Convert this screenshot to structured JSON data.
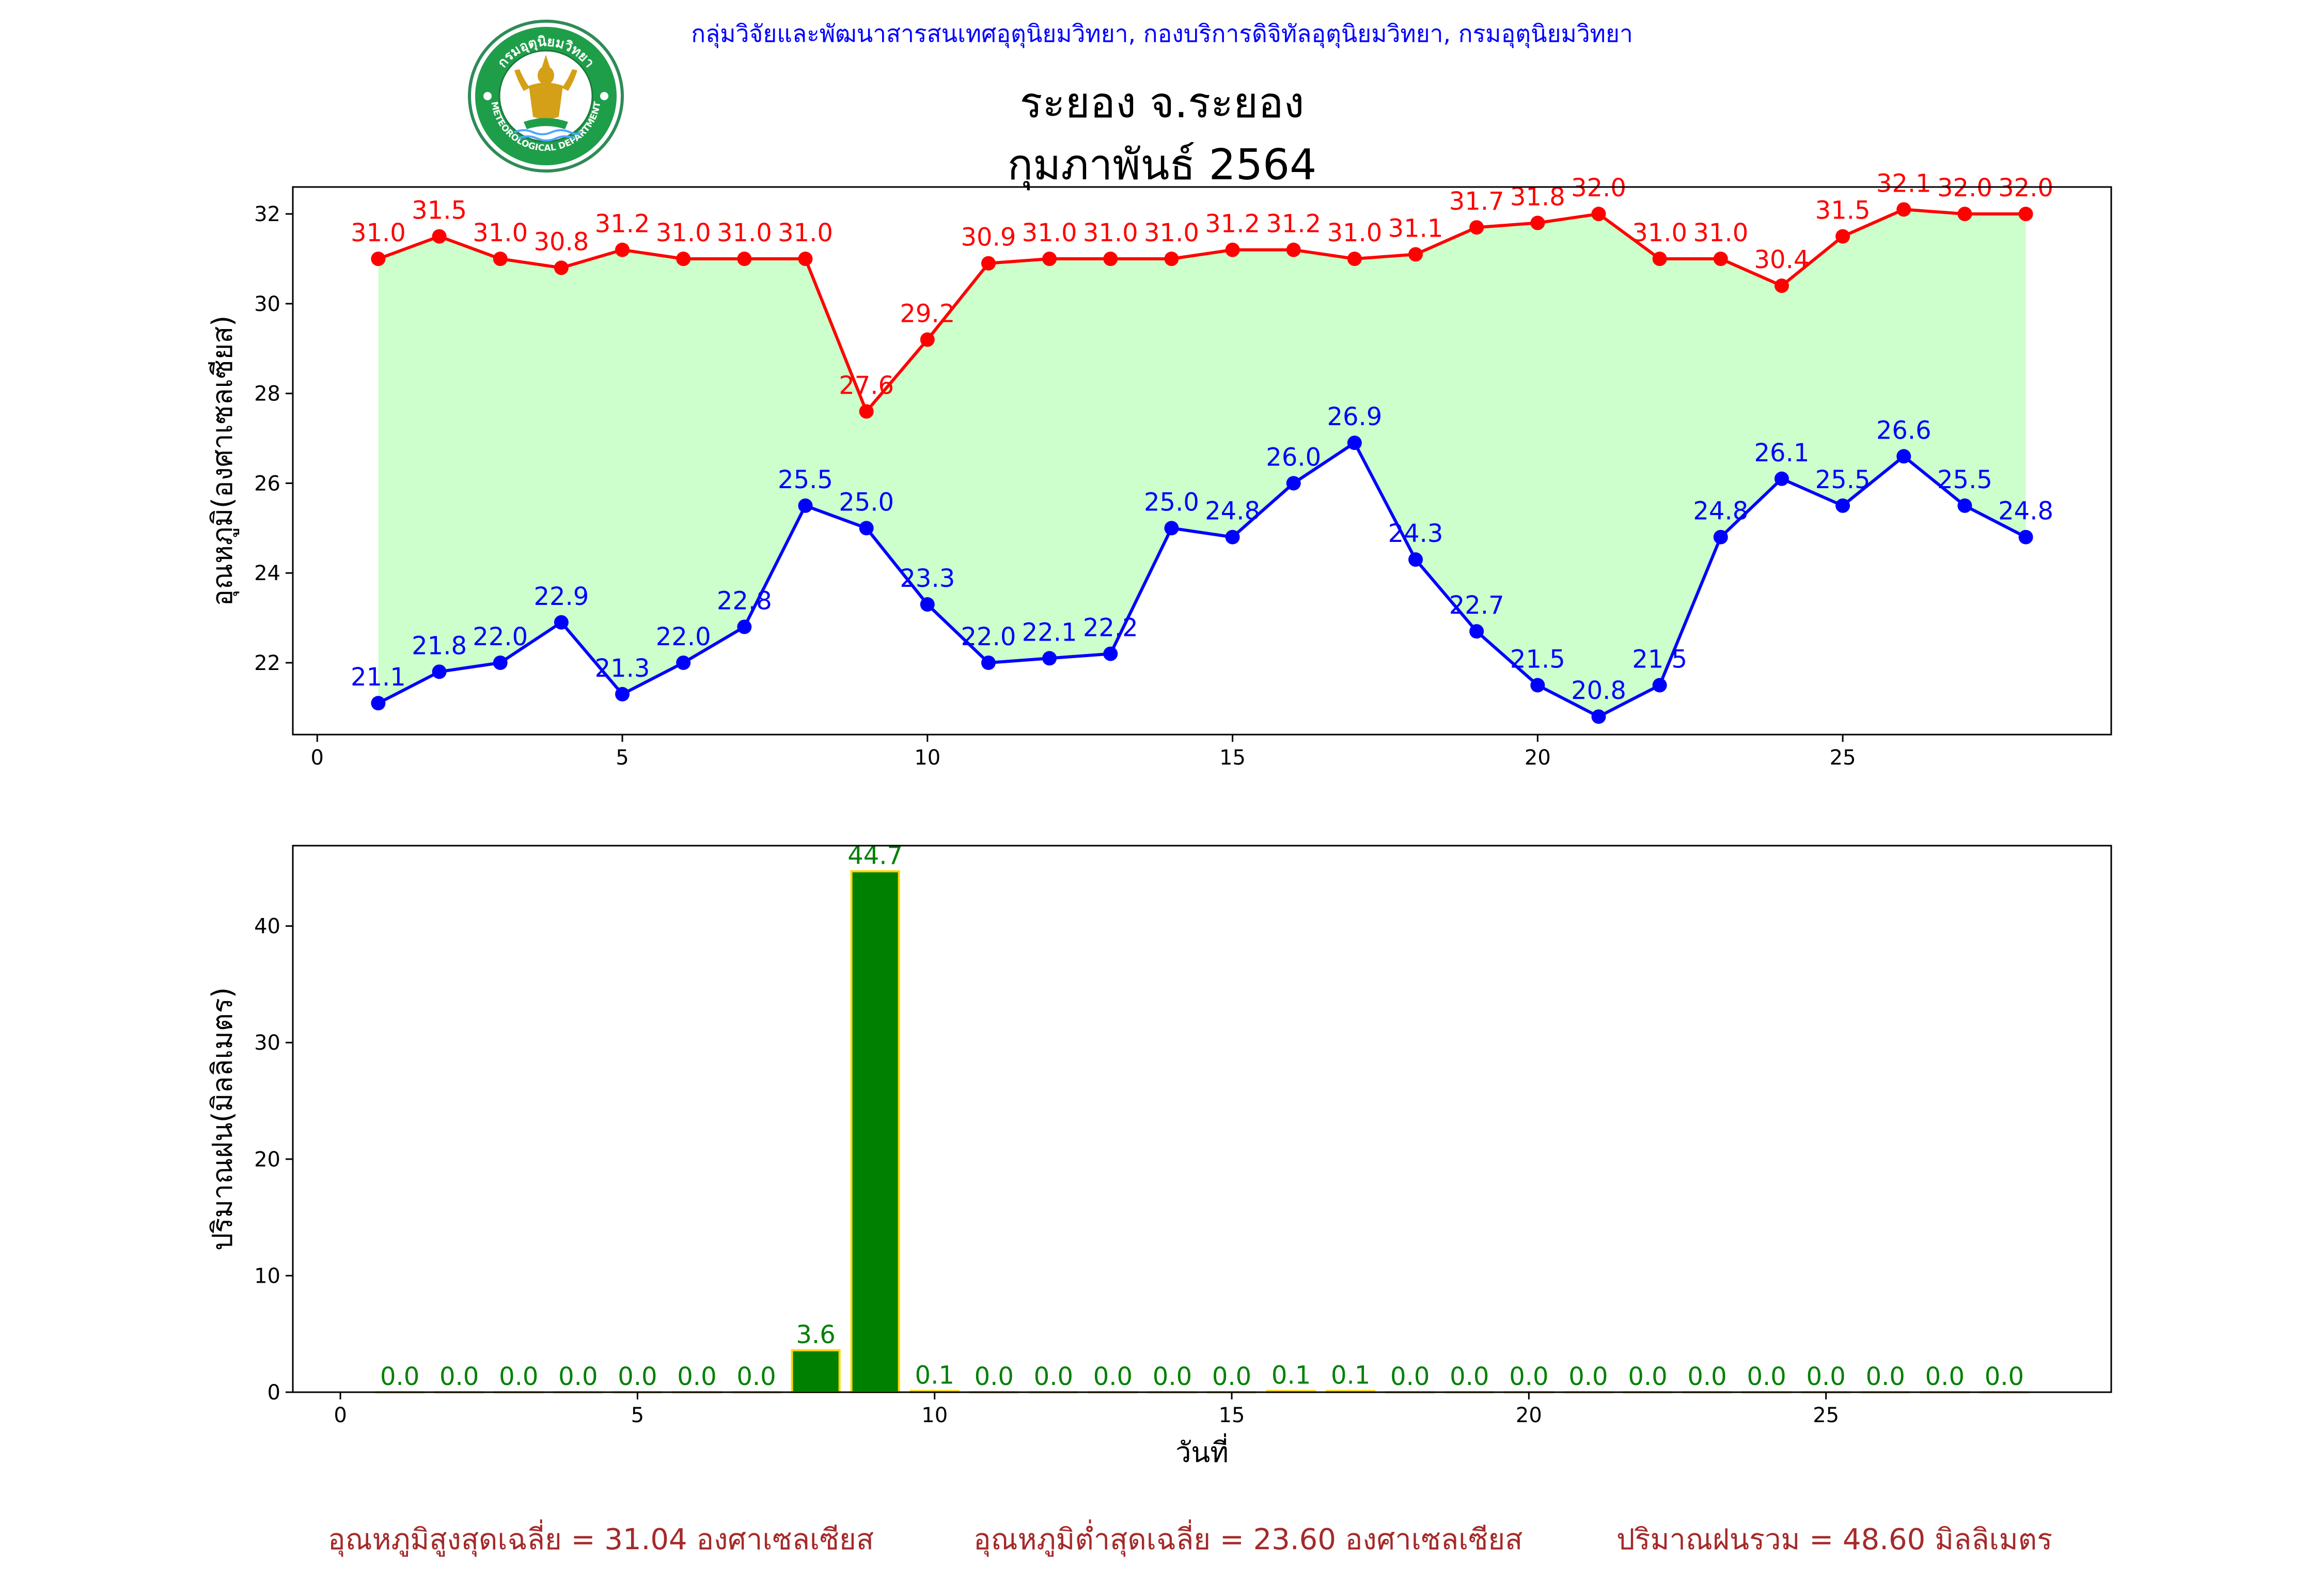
{
  "header": {
    "org_line": "กลุ่มวิจัยและพัฒนาสารสนเทศอุตุนิยมวิทยา, กองบริการดิจิทัลอุตุนิยมวิทยา, กรมอุตุนิยมวิทยา",
    "station": "ระยอง จ.ระยอง",
    "month": "กุมภาพันธ์ 2564",
    "logo_text": "กรมอุตุนิยมวิทยา METEOROLOGICAL DEPARTMENT",
    "logo_icon": "meteorological-department-seal"
  },
  "colors": {
    "max_temp": "#ff0000",
    "min_temp": "#0000ff",
    "temp_fill": "#ccffcc",
    "rain_bar": "#008000",
    "rain_bar_edge": "#ffd700",
    "rain_label": "#008000",
    "summary_text": "#a52a2a",
    "org_text": "#0000ff"
  },
  "chart_data": [
    {
      "type": "line",
      "title": "",
      "ylabel": "อุณหภูมิ(องศาเซลเซียส)",
      "xlabel": "",
      "x": [
        1,
        2,
        3,
        4,
        5,
        6,
        7,
        8,
        9,
        10,
        11,
        12,
        13,
        14,
        15,
        16,
        17,
        18,
        19,
        20,
        21,
        22,
        23,
        24,
        25,
        26,
        27,
        28
      ],
      "xlim": [
        -0.4,
        29.4
      ],
      "ylim": [
        20.4,
        32.6
      ],
      "xticks": [
        0,
        5,
        10,
        15,
        20,
        25
      ],
      "yticks": [
        22,
        24,
        26,
        28,
        30,
        32
      ],
      "grid": false,
      "fill_between": true,
      "series": [
        {
          "values": [
            31.0,
            31.5,
            31.0,
            30.8,
            31.2,
            31.0,
            31.0,
            31.0,
            27.6,
            29.2,
            30.9,
            31.0,
            31.0,
            31.0,
            31.2,
            31.2,
            31.0,
            31.1,
            31.7,
            31.8,
            32.0,
            31.0,
            31.0,
            30.4,
            31.5,
            32.1,
            32.0,
            32.0
          ]
        },
        {
          "values": [
            21.1,
            21.8,
            22.0,
            22.9,
            21.3,
            22.0,
            22.8,
            25.5,
            25.0,
            23.3,
            22.0,
            22.1,
            22.2,
            25.0,
            24.8,
            26.0,
            26.9,
            24.3,
            22.7,
            21.5,
            20.8,
            21.5,
            24.8,
            26.1,
            25.5,
            26.6,
            25.5,
            24.8
          ]
        }
      ]
    },
    {
      "type": "bar",
      "title": "",
      "ylabel": "ปริมาณฝน(มิลลิเมตร)",
      "xlabel": "วันที่",
      "x": [
        1,
        2,
        3,
        4,
        5,
        6,
        7,
        8,
        9,
        10,
        11,
        12,
        13,
        14,
        15,
        16,
        17,
        18,
        19,
        20,
        21,
        22,
        23,
        24,
        25,
        26,
        27,
        28
      ],
      "values": [
        0.0,
        0.0,
        0.0,
        0.0,
        0.0,
        0.0,
        0.0,
        3.6,
        44.7,
        0.1,
        0.0,
        0.0,
        0.0,
        0.0,
        0.0,
        0.1,
        0.1,
        0.0,
        0.0,
        0.0,
        0.0,
        0.0,
        0.0,
        0.0,
        0.0,
        0.0,
        0.0,
        0.0
      ],
      "xlim": [
        -0.8,
        29.8
      ],
      "ylim": [
        0,
        46.9
      ],
      "xticks": [
        0,
        5,
        10,
        15,
        20,
        25
      ],
      "yticks": [
        0,
        10,
        20,
        30,
        40
      ],
      "grid": false
    }
  ],
  "summary": {
    "avg_max": "อุณหภูมิสูงสุดเฉลี่ย = 31.04 องศาเซลเซียส",
    "avg_min": "อุณหภูมิต่ำสุดเฉลี่ย = 23.60 องศาเซลเซียส",
    "total_rain": "ปริมาณฝนรวม = 48.60 มิลลิเมตร"
  }
}
